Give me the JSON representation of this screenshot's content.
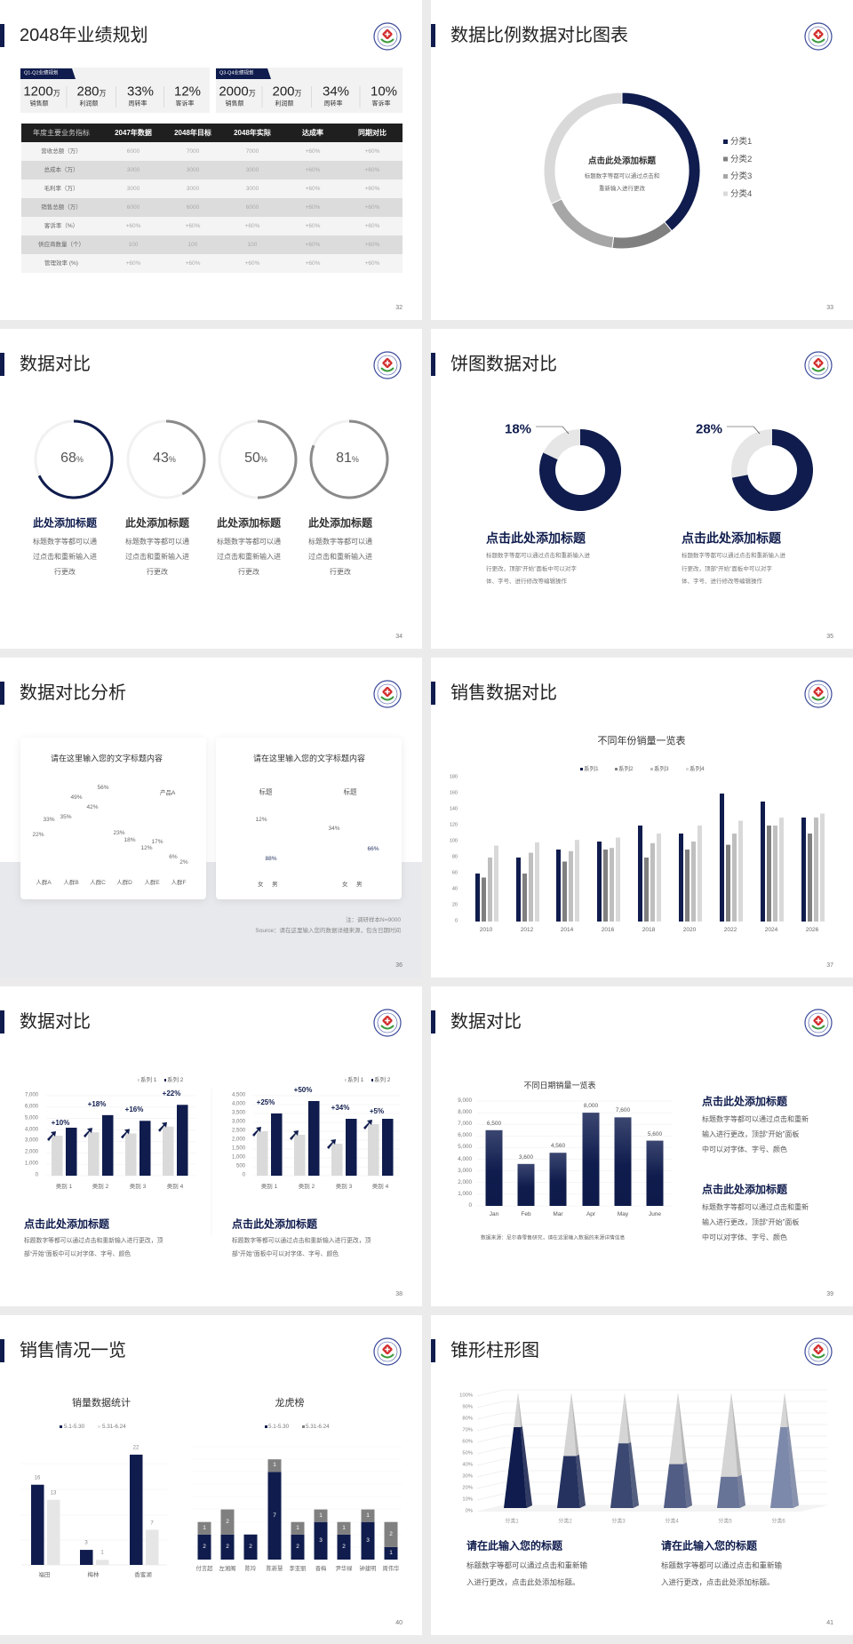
{
  "colors": {
    "navy": "#0f1c4d",
    "gray_dark": "#808080",
    "gray_mid": "#a6a6a6",
    "gray_light": "#d9d9d9",
    "table_header": "#1f1f1f"
  },
  "s32": {
    "title": "2048年业绩规划",
    "page": "32",
    "panels": [
      {
        "tag": "Q1-Q2业绩规划",
        "stats": [
          {
            "value": "1200",
            "unit": "万",
            "label": "销售额"
          },
          {
            "value": "280",
            "unit": "万",
            "label": "利润额"
          },
          {
            "value": "33%",
            "unit": "",
            "label": "周转率"
          },
          {
            "value": "12%",
            "unit": "",
            "label": "客诉率"
          }
        ]
      },
      {
        "tag": "Q3-Q4业绩规划",
        "stats": [
          {
            "value": "2000",
            "unit": "万",
            "label": "销售额"
          },
          {
            "value": "200",
            "unit": "万",
            "label": "利润额"
          },
          {
            "value": "34%",
            "unit": "",
            "label": "周转率"
          },
          {
            "value": "10%",
            "unit": "",
            "label": "客诉率"
          }
        ]
      }
    ],
    "table": {
      "header": [
        "年度主要业务指标",
        "2047年数据",
        "2048年目标",
        "2048年实际",
        "达成率",
        "同期对比"
      ],
      "rows": [
        [
          "营收总额（万）",
          "6000",
          "7000",
          "7000",
          "+60%",
          "+60%"
        ],
        [
          "总成本（万）",
          "3000",
          "3000",
          "3000",
          "+60%",
          "+60%"
        ],
        [
          "毛利率（万）",
          "3000",
          "3000",
          "3000",
          "+60%",
          "+60%"
        ],
        [
          "销售总额（万）",
          "6000",
          "6000",
          "6000",
          "+60%",
          "+60%"
        ],
        [
          "客诉率（%）",
          "+60%",
          "+60%",
          "+60%",
          "+60%",
          "+60%"
        ],
        [
          "供应商数量（个）",
          "100",
          "100",
          "100",
          "+60%",
          "+60%"
        ],
        [
          "管理效率 (%)",
          "+60%",
          "+60%",
          "+60%",
          "+60%",
          "+60%"
        ]
      ]
    }
  },
  "s33": {
    "title": "数据比例数据对比图表",
    "page": "33",
    "center_title": "点击此处添加标题",
    "center_desc": [
      "标题数字等都可以通过点击和",
      "重新输入进行更改"
    ]
  },
  "s34": {
    "title": "数据对比",
    "page": "34",
    "items": [
      {
        "percent": 68,
        "number": "68",
        "unit": "%",
        "heading": "此处添加标题",
        "desc": [
          "标题数字等都可以通",
          "过点击和重新输入进",
          "行更改"
        ],
        "accent": true
      },
      {
        "percent": 43,
        "number": "43",
        "unit": "%",
        "heading": "此处添加标题",
        "desc": [
          "标题数字等都可以通",
          "过点击和重新输入进",
          "行更改"
        ],
        "accent": false
      },
      {
        "percent": 50,
        "number": "50",
        "unit": "%",
        "heading": "此处添加标题",
        "desc": [
          "标题数字等都可以通",
          "过点击和重新输入进",
          "行更改"
        ],
        "accent": false
      },
      {
        "percent": 81,
        "number": "81",
        "unit": "%",
        "heading": "此处添加标题",
        "desc": [
          "标题数字等都可以通",
          "过点击和重新输入进",
          "行更改"
        ],
        "accent": false
      }
    ]
  },
  "s35": {
    "title": "饼图数据对比",
    "page": "35",
    "items": [
      {
        "percent": 18,
        "label": "18%",
        "heading": "点击此处添加标题",
        "desc": [
          "标题数字等都可以通过点击和重新输入进",
          "行更改，顶部“开始”面板中可以对字",
          "体、字号、进行修改等编辑操作"
        ]
      },
      {
        "percent": 28,
        "label": "28%",
        "heading": "点击此处添加标题",
        "desc": [
          "标题数字等都可以通过点击和重新输入进",
          "行更改，顶部“开始”面板中可以对字",
          "体、字号、进行修改等编辑操作"
        ]
      }
    ]
  },
  "s36": {
    "title": "数据对比分析",
    "page": "36",
    "card_title_left": "请在这里输入您的文字标题内容",
    "card_title_right": "请在这里输入您的文字标题内容",
    "note": "注：调研样本N=9000",
    "source": "Source：请在这里输入您的数据详细来源，包含日期时间"
  },
  "s37": {
    "title": "销售数据对比",
    "page": "37"
  },
  "s38": {
    "title": "数据对比",
    "page": "38",
    "blocks": [
      {
        "heading": "点击此处添加标题",
        "desc": [
          "标题数字等都可以通过点击和重新输入进行更改，顶",
          "部“开始”面板中可以对字体、字号、颜色"
        ]
      },
      {
        "heading": "点击此处添加标题",
        "desc": [
          "标题数字等都可以通过点击和重新输入进行更改，顶",
          "部“开始”面板中可以对字体、字号、颜色"
        ]
      }
    ]
  },
  "s39": {
    "title": "数据对比",
    "page": "39",
    "source": "数据来源：尼尔森零售研究，请在这里输入数据的来源详情信息",
    "blocks": [
      {
        "heading": "点击此处添加标题",
        "desc": [
          "标题数字等都可以通过点击和重新",
          "输入进行更改，顶部“开始”面板",
          "中可以对字体、字号、颜色"
        ]
      },
      {
        "heading": "点击此处添加标题",
        "desc": [
          "标题数字等都可以通过点击和重新",
          "输入进行更改，顶部“开始”面板",
          "中可以对字体、字号、颜色"
        ]
      }
    ]
  },
  "s40": {
    "title": "销售情况一览",
    "page": "40"
  },
  "s41": {
    "title": "锥形柱形图",
    "page": "41",
    "blocks": [
      {
        "heading": "请在此输入您的标题",
        "desc": [
          "标题数字等都可以通过点击和重新输",
          "入进行更改，点击此处添加标题。"
        ]
      },
      {
        "heading": "请在此输入您的标题",
        "desc": [
          "标题数字等都可以通过点击和重新输",
          "入进行更改，点击此处添加标题。"
        ]
      }
    ]
  },
  "chart_data": [
    {
      "type": "pie",
      "variant": "donut",
      "categories": [
        "分类1",
        "分类2",
        "分类3",
        "分类4"
      ],
      "values": [
        39,
        13,
        16,
        32
      ],
      "legend": "right"
    },
    {
      "type": "pie",
      "variant": "donut",
      "categories": [
        "女",
        "男"
      ],
      "charts": [
        {
          "title": "标题",
          "values": [
            88,
            12
          ],
          "labels": [
            "88%",
            "12%"
          ]
        },
        {
          "title": "标题",
          "values": [
            66,
            34
          ],
          "labels": [
            "66%",
            "34%"
          ]
        }
      ],
      "legend": "bottom"
    },
    {
      "type": "bar",
      "categories": [
        "人群A",
        "人群B",
        "人群C",
        "人群D",
        "人群E",
        "人群F"
      ],
      "series": [
        {
          "name": "产品A",
          "values": [
            22,
            35,
            42,
            23,
            12,
            6
          ]
        },
        {
          "values": [
            33,
            49,
            56,
            18,
            17,
            2
          ]
        }
      ],
      "unit": "%",
      "legend": "top-right"
    },
    {
      "type": "bar",
      "title": "不同年份销量一览表",
      "categories": [
        "2010",
        "2012",
        "2014",
        "2016",
        "2018",
        "2020",
        "2022",
        "2024",
        "2026"
      ],
      "series": [
        {
          "name": "系列1",
          "values": [
            60,
            80,
            90,
            100,
            120,
            110,
            160,
            150,
            130
          ]
        },
        {
          "name": "系列2",
          "values": [
            55,
            60,
            75,
            90,
            80,
            90,
            96,
            120,
            110
          ]
        },
        {
          "name": "系列3",
          "values": [
            80,
            86,
            88,
            92,
            98,
            100,
            110,
            120,
            130
          ]
        },
        {
          "name": "系列4",
          "values": [
            95,
            99,
            102,
            105,
            110,
            120,
            126,
            130,
            135
          ]
        }
      ],
      "ylim": [
        0,
        180
      ],
      "ytick_step": 20,
      "legend": "top"
    },
    {
      "type": "bar",
      "categories": [
        "类别 1",
        "类别 2",
        "类别 3",
        "类别 4"
      ],
      "series": [
        {
          "name": "系列 1",
          "values": [
            3500,
            3800,
            3700,
            4300
          ]
        },
        {
          "name": "系列 2",
          "values": [
            4200,
            5300,
            4800,
            6200
          ]
        }
      ],
      "annotations": [
        "+10%",
        "+18%",
        "+16%",
        "+22%"
      ],
      "ylim": [
        0,
        7000
      ],
      "ytick_step": 1000,
      "grid": true,
      "legend": "top-right"
    },
    {
      "type": "bar",
      "categories": [
        "类别 1",
        "类别 2",
        "类别 3",
        "类别 4"
      ],
      "series": [
        {
          "name": "系列 1",
          "values": [
            2500,
            2300,
            1800,
            2900
          ]
        },
        {
          "name": "系列 2",
          "values": [
            3500,
            4200,
            3200,
            3200
          ]
        }
      ],
      "annotations": [
        "+25%",
        "+50%",
        "+34%",
        "+5%"
      ],
      "ylim": [
        0,
        4500
      ],
      "ytick_step": 500,
      "grid": true,
      "legend": "top-right"
    },
    {
      "type": "bar",
      "title": "不同日期销量一览表",
      "categories": [
        "Jan",
        "Feb",
        "Mar",
        "Apr",
        "May",
        "June"
      ],
      "values": [
        6500,
        3600,
        4560,
        8000,
        7600,
        5600
      ],
      "data_labels": [
        "6,500",
        "3,600",
        "4,560",
        "8,000",
        "7,600",
        "5,600"
      ],
      "ylim": [
        0,
        9000
      ],
      "ytick_step": 1000,
      "grid": true
    },
    {
      "type": "bar",
      "title": "销量数据统计",
      "categories": [
        "福田",
        "梅林",
        "香蜜湖"
      ],
      "series": [
        {
          "name": "5.1-5.30",
          "values": [
            16,
            3,
            22
          ]
        },
        {
          "name": "5.31-6.24",
          "values": [
            13,
            1,
            7
          ]
        }
      ],
      "legend": "top"
    },
    {
      "type": "bar",
      "variant": "stacked",
      "title": "龙虎榜",
      "categories": [
        "付言超",
        "左湘阁",
        "陈玲",
        "陈新慧",
        "李亚丽",
        "晋梅",
        "尹华禄",
        "钟建明",
        "周伟华"
      ],
      "series": [
        {
          "name": "5.1-5.30",
          "values": [
            2,
            2,
            2,
            7,
            2,
            3,
            2,
            3,
            1
          ]
        },
        {
          "name": "5.31-6.24",
          "values": [
            1,
            2,
            0,
            1,
            1,
            1,
            1,
            1,
            2
          ]
        }
      ],
      "legend": "top"
    },
    {
      "type": "bar",
      "variant": "3d-cone",
      "categories": [
        "分类1",
        "分类2",
        "分类3",
        "分类4",
        "分类5",
        "分类6"
      ],
      "values": [
        70,
        45,
        56,
        38,
        27,
        70
      ],
      "ylim": [
        0,
        100
      ],
      "ytick_step": 10,
      "unit": "%"
    }
  ]
}
